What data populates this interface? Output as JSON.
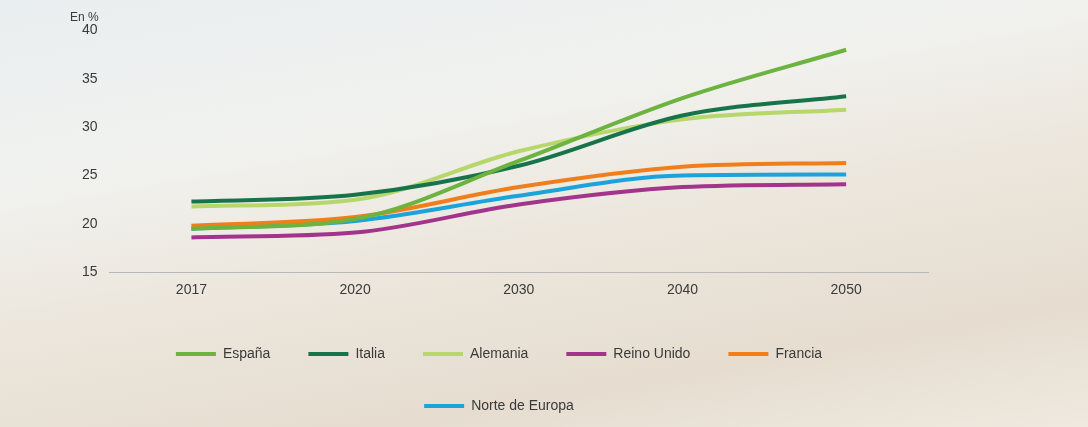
{
  "chart_data": {
    "type": "line",
    "y_label": "En %",
    "categories": [
      "2017",
      "2020",
      "2030",
      "2040",
      "2050"
    ],
    "series": [
      {
        "name": "España",
        "color": "#6cb33f",
        "values": [
          19.5,
          20.5,
          26.5,
          33,
          38
        ]
      },
      {
        "name": "Italia",
        "color": "#17744a",
        "values": [
          22.3,
          23,
          26,
          31.2,
          33.2
        ]
      },
      {
        "name": "Alemania",
        "color": "#b7d66b",
        "values": [
          21.8,
          22.5,
          27.5,
          30.8,
          31.8
        ]
      },
      {
        "name": "Reino Unido",
        "color": "#a2348c",
        "values": [
          18.6,
          19.1,
          22,
          23.8,
          24.1
        ]
      },
      {
        "name": "Francia",
        "color": "#f07f1b",
        "values": [
          19.8,
          20.7,
          23.8,
          25.9,
          26.3
        ]
      },
      {
        "name": "Norte de Europa",
        "color": "#1ca3dc",
        "values": [
          19.5,
          20.3,
          22.9,
          25,
          25.1
        ]
      }
    ],
    "ylim": [
      15,
      40
    ],
    "yticks": [
      15,
      20,
      25,
      30,
      35,
      40
    ],
    "grid": false,
    "legend": "bottom"
  }
}
